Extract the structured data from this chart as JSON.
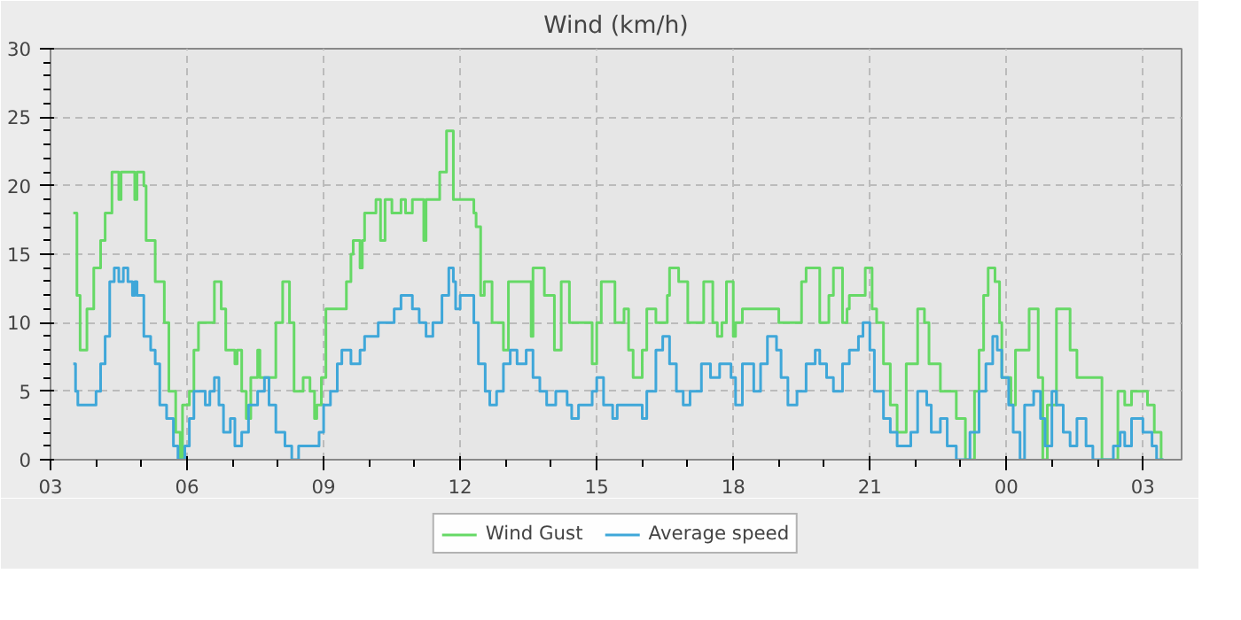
{
  "chart_data": {
    "type": "step",
    "title": "Wind (km/h)",
    "xlim": [
      3,
      27.85
    ],
    "xticks": [
      {
        "value": 3,
        "label": "03"
      },
      {
        "value": 6,
        "label": "06"
      },
      {
        "value": 9,
        "label": "09"
      },
      {
        "value": 12,
        "label": "12"
      },
      {
        "value": 15,
        "label": "15"
      },
      {
        "value": 18,
        "label": "18"
      },
      {
        "value": 21,
        "label": "21"
      },
      {
        "value": 24,
        "label": "00"
      },
      {
        "value": 27,
        "label": "03"
      }
    ],
    "ylim": [
      0,
      30
    ],
    "yticks": [
      0,
      5,
      10,
      15,
      20,
      25,
      30
    ],
    "grid": true,
    "legend": "bottom",
    "line_style": "solid",
    "series": [
      {
        "name": "Wind Gust",
        "color": "#66d966",
        "x": [
          3.5,
          3.58,
          3.65,
          3.8,
          3.95,
          4.1,
          4.2,
          4.35,
          4.5,
          4.55,
          4.85,
          4.9,
          5.05,
          5.1,
          5.3,
          5.5,
          5.6,
          5.75,
          5.85,
          5.9,
          6.05,
          6.15,
          6.25,
          6.6,
          6.75,
          6.85,
          7.05,
          7.1,
          7.2,
          7.3,
          7.4,
          7.55,
          7.6,
          7.95,
          8.1,
          8.25,
          8.35,
          8.55,
          8.7,
          8.8,
          8.85,
          8.95,
          9.05,
          9.5,
          9.6,
          9.65,
          9.8,
          9.85,
          9.9,
          10.15,
          10.25,
          10.35,
          10.5,
          10.7,
          10.8,
          10.95,
          11.2,
          11.25,
          11.55,
          11.7,
          11.85,
          12.3,
          12.35,
          12.45,
          12.53,
          12.7,
          12.95,
          13.06,
          13.56,
          13.6,
          13.85,
          14.07,
          14.22,
          14.4,
          14.9,
          15.0,
          15.1,
          15.4,
          15.6,
          15.7,
          15.8,
          16.0,
          16.1,
          16.3,
          16.55,
          16.6,
          16.8,
          17.0,
          17.35,
          17.55,
          17.65,
          17.75,
          17.85,
          18.0,
          18.05,
          18.2,
          19.0,
          19.5,
          19.6,
          19.9,
          20.1,
          20.2,
          20.4,
          20.5,
          20.55,
          20.9,
          21.05,
          21.15,
          21.3,
          21.45,
          21.6,
          21.8,
          22.05,
          22.2,
          22.3,
          22.55,
          22.9,
          23.1,
          23.3,
          23.4,
          23.5,
          23.6,
          23.75,
          23.85,
          23.9,
          24.1,
          24.2,
          24.5,
          24.7,
          24.8,
          24.9,
          25.1,
          25.4,
          25.55,
          26.1,
          26.45,
          26.6,
          26.75,
          27.1,
          27.25,
          27.4,
          27.45
        ],
        "values": [
          18,
          12,
          8,
          11,
          14,
          16,
          18,
          21,
          19,
          21,
          19,
          21,
          20,
          16,
          13,
          10,
          5,
          2,
          0,
          4,
          5,
          8,
          10,
          13,
          11,
          8,
          7,
          8,
          5,
          3,
          6,
          8,
          6,
          10,
          13,
          10,
          5,
          6,
          5,
          3,
          4,
          6,
          11,
          13,
          15,
          16,
          14,
          16,
          18,
          19,
          16,
          19,
          18,
          19,
          18,
          19,
          16,
          19,
          21,
          24,
          19,
          18,
          17,
          12,
          13,
          10,
          8,
          13,
          9,
          14,
          12,
          8,
          13,
          10,
          7,
          10,
          13,
          10,
          11,
          8,
          6,
          8,
          11,
          10,
          12,
          14,
          13,
          10,
          13,
          10,
          9,
          10,
          13,
          9,
          10,
          11,
          10,
          13,
          14,
          10,
          12,
          14,
          10,
          11,
          12,
          14,
          11,
          10,
          7,
          4,
          2,
          7,
          11,
          10,
          7,
          5,
          3,
          0,
          5,
          8,
          12,
          14,
          13,
          10,
          6,
          4,
          8,
          11,
          6,
          0,
          4,
          11,
          8,
          6,
          0,
          5,
          4,
          5,
          4,
          2,
          0,
          0
        ]
      },
      {
        "name": "Average speed",
        "color": "#3fa7d9",
        "x": [
          3.5,
          3.55,
          3.6,
          4.0,
          4.1,
          4.2,
          4.3,
          4.4,
          4.5,
          4.6,
          4.7,
          4.8,
          4.85,
          4.9,
          5.05,
          5.2,
          5.3,
          5.4,
          5.55,
          5.7,
          5.8,
          5.95,
          6.05,
          6.15,
          6.4,
          6.5,
          6.6,
          6.7,
          6.8,
          6.95,
          7.05,
          7.2,
          7.35,
          7.55,
          7.7,
          7.8,
          7.95,
          8.15,
          8.3,
          8.45,
          8.9,
          9.0,
          9.15,
          9.3,
          9.4,
          9.6,
          9.8,
          9.9,
          10.2,
          10.55,
          10.7,
          10.95,
          11.1,
          11.25,
          11.4,
          11.6,
          11.75,
          11.85,
          11.9,
          12.0,
          12.3,
          12.4,
          12.55,
          12.65,
          12.8,
          12.95,
          13.1,
          13.25,
          13.45,
          13.6,
          13.75,
          13.9,
          14.1,
          14.35,
          14.45,
          14.6,
          14.9,
          15.0,
          15.15,
          15.35,
          15.45,
          16.0,
          16.1,
          16.3,
          16.45,
          16.6,
          16.75,
          16.9,
          17.05,
          17.3,
          17.5,
          17.7,
          17.95,
          18.05,
          18.2,
          18.45,
          18.6,
          18.75,
          18.95,
          19.05,
          19.2,
          19.4,
          19.6,
          19.8,
          19.9,
          20.05,
          20.2,
          20.4,
          20.55,
          20.75,
          20.85,
          21.0,
          21.1,
          21.3,
          21.45,
          21.6,
          21.9,
          22.05,
          22.25,
          22.35,
          22.55,
          22.7,
          22.9,
          23.2,
          23.4,
          23.55,
          23.7,
          23.8,
          23.9,
          24.05,
          24.15,
          24.3,
          24.4,
          24.6,
          24.75,
          24.85,
          25.0,
          25.1,
          25.25,
          25.4,
          25.55,
          25.75,
          25.9,
          26.35,
          26.5,
          26.6,
          26.75,
          27.0,
          27.2,
          27.3,
          27.45
        ],
        "values": [
          7,
          5,
          4,
          5,
          7,
          9,
          13,
          14,
          13,
          14,
          13,
          12,
          13,
          12,
          9,
          8,
          7,
          4,
          3,
          1,
          0,
          1,
          3,
          5,
          4,
          5,
          6,
          4,
          2,
          3,
          1,
          2,
          4,
          5,
          6,
          4,
          2,
          1,
          0,
          1,
          2,
          4,
          5,
          7,
          8,
          7,
          8,
          9,
          10,
          11,
          12,
          11,
          10,
          9,
          10,
          12,
          14,
          13,
          11,
          12,
          10,
          7,
          5,
          4,
          5,
          7,
          8,
          7,
          8,
          6,
          5,
          4,
          5,
          4,
          3,
          4,
          5,
          6,
          4,
          3,
          4,
          3,
          5,
          8,
          9,
          7,
          5,
          4,
          5,
          7,
          6,
          7,
          6,
          4,
          7,
          5,
          7,
          9,
          8,
          6,
          4,
          5,
          7,
          8,
          7,
          6,
          5,
          7,
          8,
          9,
          10,
          8,
          5,
          3,
          2,
          1,
          2,
          5,
          4,
          2,
          3,
          1,
          0,
          2,
          5,
          7,
          9,
          8,
          6,
          4,
          2,
          0,
          4,
          5,
          3,
          1,
          5,
          4,
          2,
          1,
          3,
          1,
          0,
          1,
          2,
          1,
          3,
          2,
          1,
          0,
          0
        ]
      }
    ]
  }
}
